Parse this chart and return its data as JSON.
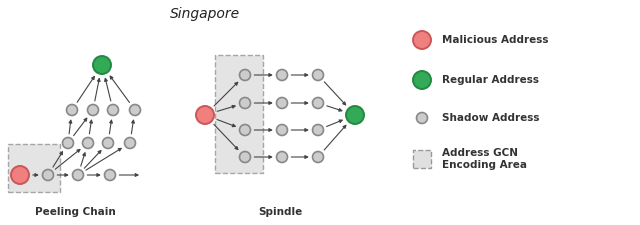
{
  "title": "Singapore",
  "background": "#ffffff",
  "node_shadow_color": "#cccccc",
  "node_shadow_edge": "#888888",
  "node_malicious_color": "#f08080",
  "node_malicious_edge": "#cc5555",
  "node_regular_color": "#33aa55",
  "node_regular_edge": "#228844",
  "arrow_color": "#444444",
  "box_fill": "#e0e0e0",
  "box_edge": "#999999",
  "label_peeling": "Peeling Chain",
  "label_spindle": "Spindle",
  "r_small": 0.055,
  "r_large": 0.09
}
